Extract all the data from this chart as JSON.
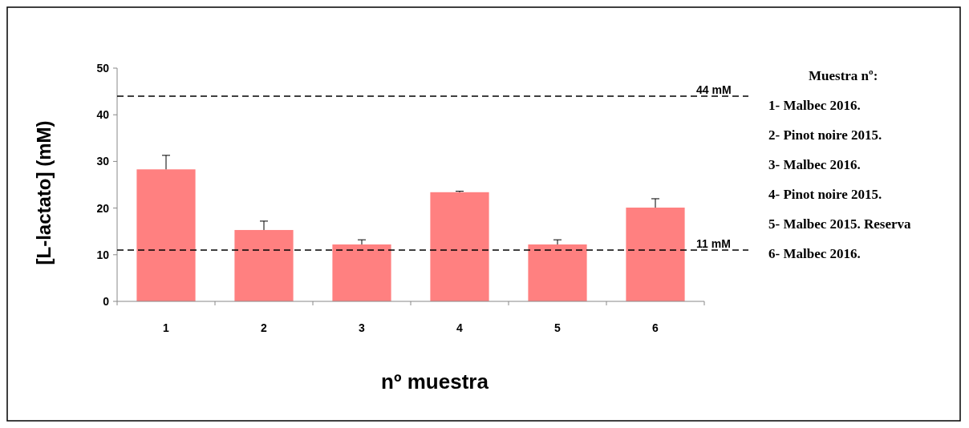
{
  "chart_data": {
    "type": "bar",
    "xlabel": "nº muestra",
    "ylabel": "[L-lactato] (mM)",
    "categories": [
      "1",
      "2",
      "3",
      "4",
      "5",
      "6"
    ],
    "values": [
      28.3,
      15.3,
      12.2,
      23.4,
      12.2,
      20.1
    ],
    "errors": [
      [
        28.3,
        31.3
      ],
      [
        15.3,
        17.2
      ],
      [
        12.2,
        13.2
      ],
      [
        23.4,
        23.6
      ],
      [
        12.2,
        13.2
      ],
      [
        20.1,
        22
      ]
    ],
    "color": "#ff8080",
    "ylim": [
      0,
      50
    ],
    "yticks": [
      0,
      10,
      20,
      30,
      40,
      50
    ],
    "grid": false,
    "ref_lines": [
      {
        "axis": "y",
        "value": 44,
        "label": "44  mM",
        "line_style": "dashed",
        "color": "#000000"
      },
      {
        "axis": "y",
        "value": 11,
        "label": "11 mM",
        "line_style": "dashed",
        "color": "#000000"
      }
    ],
    "annotations": [
      "Muestra nº:",
      "1- Malbec 2016.",
      "2- Pinot noire 2015.",
      "3- Malbec 2016.",
      "4- Pinot noire 2015.",
      "5- Malbec 2015. Reserva",
      "6- Malbec 2016."
    ]
  }
}
